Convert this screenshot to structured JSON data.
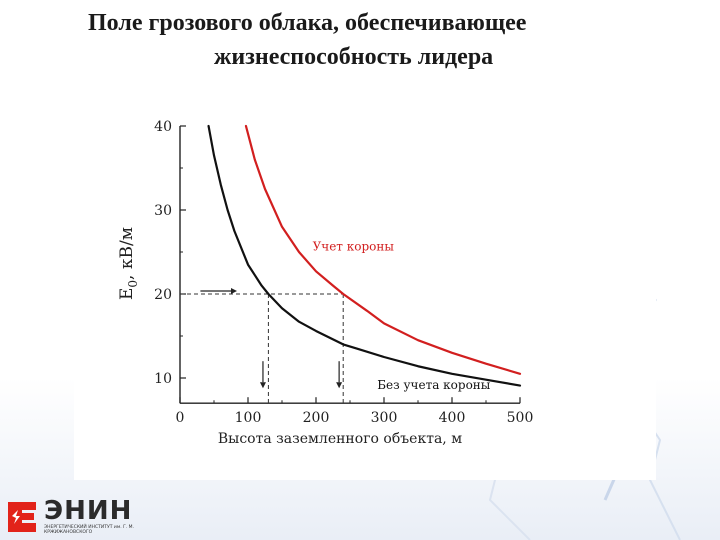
{
  "title": {
    "line1": "Поле грозового облака, обеспечивающее",
    "line2": "жизнеспособность лидера"
  },
  "chart_data": {
    "type": "line",
    "xlabel": "Высота заземленного объекта,  м",
    "ylabel_main": "E",
    "ylabel_sub": "0",
    "ylabel_unit": ",  кВ/м",
    "xlim": [
      0,
      500
    ],
    "ylim": [
      7,
      40
    ],
    "xticks": [
      0,
      100,
      200,
      300,
      400,
      500
    ],
    "yticks": [
      10,
      20,
      30,
      40
    ],
    "grid": false,
    "series": [
      {
        "name": "Без учета короны",
        "color": "#111111",
        "x": [
          42,
          50,
          60,
          70,
          80,
          100,
          120,
          130,
          150,
          175,
          200,
          240,
          260,
          300,
          350,
          400,
          450,
          500
        ],
        "y": [
          40,
          36.5,
          33,
          30,
          27.5,
          23.5,
          21,
          20,
          18.3,
          16.7,
          15.6,
          14,
          13.5,
          12.5,
          11.4,
          10.5,
          9.8,
          9.1
        ]
      },
      {
        "name": "Учет короны",
        "color": "#d21f1f",
        "x": [
          97,
          110,
          125,
          150,
          175,
          200,
          225,
          240,
          275,
          300,
          350,
          400,
          450,
          500
        ],
        "y": [
          40,
          36,
          32.5,
          28,
          25,
          22.7,
          21,
          20,
          18,
          16.5,
          14.5,
          13,
          11.7,
          10.5
        ]
      }
    ],
    "annotations": [
      {
        "text": "Учет короны",
        "x": 195,
        "y": 25.2,
        "color": "#d21f1f"
      },
      {
        "text": "Без учета короны",
        "x": 290,
        "y": 8.7,
        "color": "#111111"
      }
    ],
    "reference": {
      "level": 20,
      "x_black": 130,
      "x_red": 240,
      "arrow_x": [
        30,
        75
      ],
      "down_arrow_from": 12,
      "down_arrow_to": 9.5
    }
  },
  "logo": {
    "name": "ЭНИН",
    "subtitle": "ЭНЕРГЕТИЧЕСКИЙ ИНСТИТУТ им. Г. М. КРЖИЖАНОВСКОГО"
  },
  "colors": {
    "accent_red": "#d21f1f",
    "logo_red": "#e2231a"
  }
}
